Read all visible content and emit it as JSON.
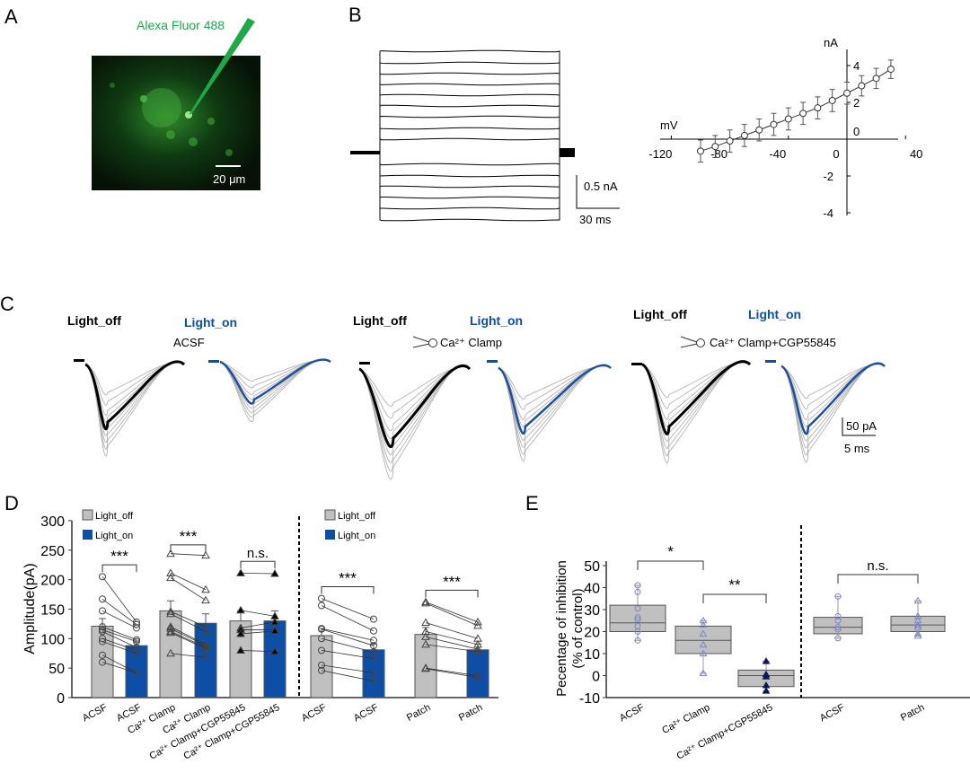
{
  "panels": {
    "a": "A",
    "b": "B",
    "c": "C",
    "d": "D",
    "e": "E"
  },
  "colors": {
    "light_off": "#c0c0c0",
    "light_on": "#0d4ea6",
    "fluor": "#1fa84a",
    "blue_trace": "#1e4fa0"
  },
  "panel_a": {
    "dye_label": "Alexa Fluor 488",
    "scale_label": "20 μm"
  },
  "panel_b": {
    "scale_current": "0.5 nA",
    "scale_time": "30 ms"
  },
  "panel_c": {
    "groups": [
      {
        "off": "Light_off",
        "on": "Light_on",
        "condition": "ACSF",
        "pipette_icon": false
      },
      {
        "off": "Light_off",
        "on": "Light_on",
        "condition": "Ca²⁺ Clamp",
        "pipette_icon": true
      },
      {
        "off": "Light_off",
        "on": "Light_on",
        "condition": "Ca²⁺ Clamp+CGP55845",
        "pipette_icon": true
      }
    ],
    "scale_current": "50 pA",
    "scale_time": "5 ms"
  },
  "chart_data": [
    {
      "id": "B-IV",
      "type": "line",
      "xlabel": "mV",
      "ylabel": "nA",
      "xlim": [
        -120,
        40
      ],
      "ylim": [
        -4,
        4
      ],
      "xticks": [
        "-120",
        "-80",
        "-40",
        "0",
        "40"
      ],
      "yticks": [
        "4",
        "2",
        "0",
        "-2",
        "-4"
      ],
      "x": [
        -100,
        -90,
        -80,
        -70,
        -60,
        -50,
        -40,
        -30,
        -20,
        -10,
        0,
        10,
        20,
        30
      ],
      "y": [
        -0.65,
        -0.4,
        -0.1,
        0.2,
        0.5,
        0.8,
        1.1,
        1.4,
        1.7,
        2.1,
        2.5,
        2.9,
        3.3,
        3.8
      ],
      "err": [
        0.6,
        0.6,
        0.6,
        0.6,
        0.6,
        0.6,
        0.6,
        0.6,
        0.6,
        0.6,
        0.6,
        0.55,
        0.55,
        0.5
      ]
    },
    {
      "id": "D",
      "type": "bar",
      "ylabel": "Amplitude(pA)",
      "ylim": [
        0,
        300
      ],
      "yticks": [
        "0",
        "50",
        "100",
        "150",
        "200",
        "250",
        "300"
      ],
      "legend": [
        {
          "name": "Light_off"
        },
        {
          "name": "Light_on"
        }
      ],
      "categories": [
        "ACSF",
        "ACSF",
        "Ca²⁺ Clamp",
        "Ca²⁺ Clamp",
        "Ca²⁺ Clamp+CGP55845",
        "Ca²⁺ Clamp+CGP55845",
        "ACSF",
        "ACSF",
        "Patch",
        "Patch"
      ],
      "values": [
        121,
        88,
        147,
        126,
        130,
        130,
        105,
        81,
        107,
        81
      ],
      "errors": [
        13,
        8,
        17,
        16,
        17,
        17,
        12,
        10,
        12,
        10
      ],
      "pairs": [
        {
          "marker": "circle",
          "data": [
            [
              205,
              128
            ],
            [
              167,
              124
            ],
            [
              147,
              118
            ],
            [
              120,
              98
            ],
            [
              115,
              95
            ],
            [
              112,
              85
            ],
            [
              100,
              80
            ],
            [
              95,
              75
            ],
            [
              72,
              42
            ],
            [
              60,
              42
            ]
          ]
        },
        {
          "marker": "triangle",
          "data": [
            [
              244,
              241
            ],
            [
              211,
              183
            ],
            [
              203,
              165
            ],
            [
              146,
              120
            ],
            [
              142,
              112
            ],
            [
              120,
              90
            ],
            [
              117,
              88
            ],
            [
              112,
              85
            ],
            [
              110,
              83
            ],
            [
              75,
              68
            ]
          ]
        },
        {
          "marker": "filled-triangle",
          "data": [
            [
              211,
              210
            ],
            [
              148,
              138
            ],
            [
              118,
              128
            ],
            [
              115,
              115
            ],
            [
              108,
              113
            ],
            [
              80,
              78
            ]
          ]
        },
        {
          "marker": "circle",
          "data": [
            [
              168,
              133
            ],
            [
              156,
              113
            ],
            [
              117,
              97
            ],
            [
              116,
              88
            ],
            [
              100,
              77
            ],
            [
              80,
              66
            ],
            [
              55,
              42
            ],
            [
              46,
              28
            ]
          ]
        },
        {
          "marker": "triangle",
          "data": [
            [
              162,
              128
            ],
            [
              160,
              122
            ],
            [
              127,
              100
            ],
            [
              112,
              90
            ],
            [
              103,
              82
            ],
            [
              90,
              78
            ],
            [
              50,
              37
            ],
            [
              49,
              34
            ]
          ]
        }
      ],
      "significance": [
        "***",
        "***",
        "n.s.",
        "***",
        "***"
      ]
    },
    {
      "id": "E",
      "type": "box",
      "ylabel": "Pecentage of inhibition",
      "ylabel2": "(% of control)",
      "ylim": [
        -10,
        50
      ],
      "yticks": [
        "-10",
        "0",
        "10",
        "20",
        "30",
        "40",
        "50"
      ],
      "categories": [
        "ACSF",
        "Ca²⁺ Clamp",
        "Ca²⁺ Clamp+CGP55845",
        "ACSF",
        "Patch"
      ],
      "boxes": [
        {
          "min": 16,
          "q1": 20,
          "median": 24,
          "q3": 32,
          "max": 41,
          "points": [
            41,
            38,
            30.5,
            26.5,
            25.5,
            22.5,
            20,
            16
          ]
        },
        {
          "min": 1,
          "q1": 10,
          "median": 16,
          "q3": 22.5,
          "max": 25,
          "points": [
            25,
            23,
            19,
            14,
            10,
            1
          ]
        },
        {
          "min": -7,
          "q1": -5,
          "median": 0,
          "q3": 2.5,
          "max": 6.5,
          "points": [
            6.5,
            0.5,
            -0.5,
            -4.5,
            -7
          ]
        },
        {
          "min": 17,
          "q1": 19,
          "median": 22,
          "q3": 26.5,
          "max": 36,
          "points": [
            36,
            27,
            25,
            22,
            21,
            17
          ]
        },
        {
          "min": 18,
          "q1": 20,
          "median": 23,
          "q3": 27,
          "max": 34,
          "points": [
            34,
            27,
            25,
            23,
            22,
            19,
            18
          ]
        }
      ],
      "significance": [
        "*",
        "**",
        "n.s."
      ]
    }
  ]
}
